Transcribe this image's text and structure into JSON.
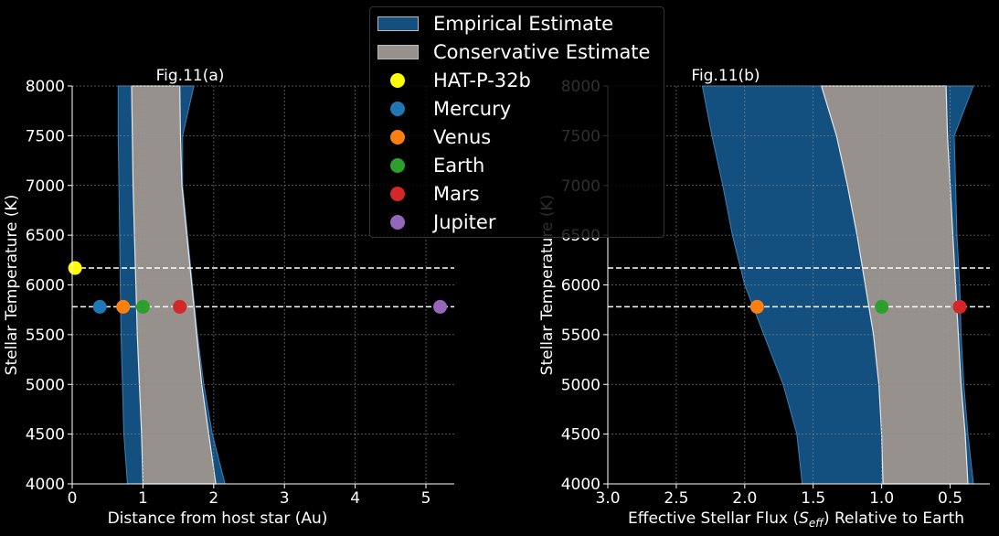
{
  "colors": {
    "background": "#000000",
    "empirical": "#14507f",
    "empirical_edge": "#3d7fb0",
    "conservative": "#96918c",
    "conservative_edge": "#e6e6e6",
    "grid": "#8a8a8a",
    "hline": "#ffffff"
  },
  "legend": {
    "items": [
      {
        "label": "Empirical Estimate",
        "kind": "patch",
        "color": "#14507f"
      },
      {
        "label": "Conservative Estimate",
        "kind": "patch",
        "color": "#96918c"
      },
      {
        "label": "HAT-P-32b",
        "kind": "dot",
        "color": "#ffff00"
      },
      {
        "label": "Mercury",
        "kind": "dot",
        "color": "#1f77b4"
      },
      {
        "label": "Venus",
        "kind": "dot",
        "color": "#ff7f0e"
      },
      {
        "label": "Earth",
        "kind": "dot",
        "color": "#2ca02c"
      },
      {
        "label": "Mars",
        "kind": "dot",
        "color": "#d62728"
      },
      {
        "label": "Jupiter",
        "kind": "dot",
        "color": "#9467bd"
      }
    ]
  },
  "chart_data": [
    {
      "type": "area",
      "title": "Fig.11(a)",
      "xlabel": "Distance from host star (Au)",
      "ylabel": "Stellar Temperature (K)",
      "xlim": [
        0,
        5.4
      ],
      "ylim": [
        4000,
        8000
      ],
      "xticks": [
        0,
        1,
        2,
        3,
        4,
        5
      ],
      "xtick_labels": [
        "0",
        "1",
        "2",
        "3",
        "4",
        "5"
      ],
      "yticks": [
        4000,
        4500,
        5000,
        5500,
        6000,
        6500,
        7000,
        7500,
        8000
      ],
      "ytick_labels": [
        "4000",
        "4500",
        "5000",
        "5500",
        "6000",
        "6500",
        "7000",
        "7500",
        "8000"
      ],
      "grid": true,
      "hlines": [
        6170,
        5780
      ],
      "empirical": {
        "T": [
          4000,
          4500,
          5000,
          5500,
          6000,
          6500,
          7000,
          7500,
          8000
        ],
        "inner": [
          0.78,
          0.73,
          0.71,
          0.69,
          0.68,
          0.67,
          0.66,
          0.65,
          0.65
        ],
        "outer": [
          2.16,
          1.98,
          1.86,
          1.77,
          1.7,
          1.63,
          1.56,
          1.56,
          1.72
        ]
      },
      "conservative": {
        "T": [
          4000,
          4500,
          5000,
          5500,
          6000,
          6500,
          7000,
          7500,
          8000
        ],
        "inner": [
          1.0,
          0.98,
          0.95,
          0.92,
          0.9,
          0.88,
          0.86,
          0.85,
          0.84
        ],
        "outer": [
          2.03,
          1.93,
          1.83,
          1.76,
          1.69,
          1.62,
          1.55,
          1.53,
          1.52
        ]
      },
      "points": [
        {
          "name": "HAT-P-32b",
          "x": 0.04,
          "y": 6170,
          "color": "#ffff00"
        },
        {
          "name": "Mercury",
          "x": 0.39,
          "y": 5780,
          "color": "#1f77b4"
        },
        {
          "name": "Venus",
          "x": 0.72,
          "y": 5780,
          "color": "#ff7f0e"
        },
        {
          "name": "Earth",
          "x": 1.0,
          "y": 5780,
          "color": "#2ca02c"
        },
        {
          "name": "Mars",
          "x": 1.52,
          "y": 5780,
          "color": "#d62728"
        },
        {
          "name": "Jupiter",
          "x": 5.2,
          "y": 5780,
          "color": "#9467bd"
        }
      ]
    },
    {
      "type": "area",
      "title": "Fig.11(b)",
      "xlabel": "Effective Stellar Flux (S_eff) Relative to Earth",
      "ylabel": "Stellar Temperature (K)",
      "xlim": [
        3.0,
        0.21
      ],
      "ylim": [
        4000,
        8000
      ],
      "xticks": [
        3.0,
        2.5,
        2.0,
        1.5,
        1.0,
        0.5
      ],
      "xtick_labels": [
        "3.0",
        "2.5",
        "2.0",
        "1.5",
        "1.0",
        "0.5"
      ],
      "yticks": [
        4000,
        4500,
        5000,
        5500,
        6000,
        6500,
        7000,
        7500,
        8000
      ],
      "ytick_labels": [
        "4000",
        "4500",
        "5000",
        "5500",
        "6000",
        "6500",
        "7000",
        "7500",
        "8000"
      ],
      "grid": true,
      "hlines": [
        6170,
        5780
      ],
      "empirical": {
        "T": [
          4000,
          4500,
          5000,
          5500,
          6000,
          6500,
          7000,
          7500,
          8000
        ],
        "inner": [
          1.58,
          1.62,
          1.72,
          1.86,
          2.0,
          2.09,
          2.16,
          2.24,
          2.31
        ],
        "outer": [
          0.33,
          0.37,
          0.4,
          0.42,
          0.43,
          0.45,
          0.46,
          0.47,
          0.33
        ]
      },
      "conservative": {
        "T": [
          4000,
          4500,
          5000,
          5500,
          6000,
          6500,
          7000,
          7500,
          8000
        ],
        "inner": [
          0.99,
          1.0,
          1.02,
          1.06,
          1.12,
          1.18,
          1.25,
          1.33,
          1.44
        ],
        "outer": [
          0.37,
          0.39,
          0.42,
          0.44,
          0.46,
          0.48,
          0.5,
          0.52,
          0.53
        ]
      },
      "points": [
        {
          "name": "Venus",
          "x": 1.91,
          "y": 5780,
          "color": "#ff7f0e"
        },
        {
          "name": "Earth",
          "x": 1.0,
          "y": 5780,
          "color": "#2ca02c"
        },
        {
          "name": "Mars",
          "x": 0.43,
          "y": 5780,
          "color": "#d62728"
        }
      ]
    }
  ]
}
